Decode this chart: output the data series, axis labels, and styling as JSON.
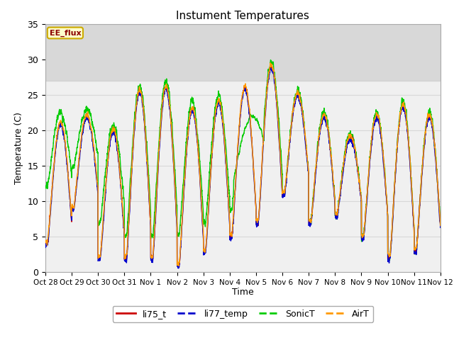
{
  "title": "Instument Temperatures",
  "xlabel": "Time",
  "ylabel": "Temperature (C)",
  "ylim": [
    0,
    35
  ],
  "tick_labels": [
    "Oct 28",
    "Oct 29",
    "Oct 30",
    "Oct 31",
    "Nov 1",
    "Nov 2",
    "Nov 3",
    "Nov 4",
    "Nov 5",
    "Nov 6",
    "Nov 7",
    "Nov 8",
    "Nov 9",
    "Nov 10",
    "Nov 11",
    "Nov 12"
  ],
  "tick_positions": [
    0,
    1,
    2,
    3,
    4,
    5,
    6,
    7,
    8,
    9,
    10,
    11,
    12,
    13,
    14,
    15
  ],
  "yticks": [
    0,
    5,
    10,
    15,
    20,
    25,
    30,
    35
  ],
  "shaded_band": [
    27.0,
    35.0
  ],
  "colors": {
    "li75_t": "#cc0000",
    "li77_temp": "#0000cc",
    "SonicT": "#00cc00",
    "AirT": "#ff9900"
  },
  "line_width": 1.0,
  "annotation_text": "EE_flux",
  "plot_bg_color": "#f0f0f0",
  "fig_bg_color": "#ffffff",
  "grid_color": "#d8d8d8",
  "day_peaks": [
    21,
    22,
    20,
    25.5,
    26,
    23,
    24,
    26,
    29,
    25,
    22,
    19,
    22,
    23.5,
    22,
    22
  ],
  "day_troughs": [
    4,
    9,
    2,
    2,
    2,
    1,
    3,
    5,
    7,
    11,
    7,
    8,
    5,
    2,
    3,
    5
  ],
  "sonic_offsets": [
    5,
    3,
    2,
    2,
    3,
    3,
    3,
    2,
    2,
    2,
    2,
    2,
    2,
    2,
    2,
    2
  ],
  "sonic_trough_offsets": [
    8,
    6,
    5,
    3,
    3,
    4,
    4,
    4,
    3,
    0,
    0,
    0,
    0,
    0,
    0,
    0
  ]
}
